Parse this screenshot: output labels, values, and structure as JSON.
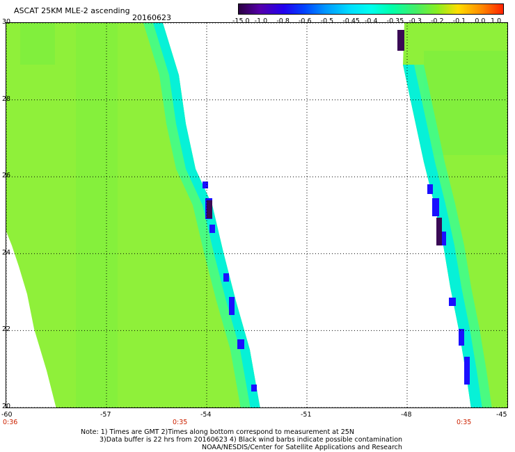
{
  "header": {
    "title": "ASCAT 25KM MLE-2 ascending",
    "date": "20160623"
  },
  "colorbar": {
    "ticks": [
      "-15.0",
      "-1.0",
      "-0.8",
      "-0.6",
      "-0.5",
      "-0.45",
      "-0.4",
      "-0.35",
      "-0.3",
      "-0.2",
      "-0.1",
      "0.0",
      "1.0"
    ],
    "colors": [
      "#2a0040",
      "#5500aa",
      "#2200ee",
      "#0044ff",
      "#0099ff",
      "#00ddff",
      "#00ffee",
      "#00ffaa",
      "#44ee66",
      "#88ee22",
      "#ffdd00",
      "#ff8800",
      "#ff2200"
    ]
  },
  "map": {
    "lat_range": [
      20,
      30
    ],
    "lon_range": [
      -60,
      -45
    ],
    "lat_ticks": [
      "30",
      "28",
      "26",
      "24",
      "22",
      "20"
    ],
    "lon_ticks": [
      "-60",
      "-57",
      "-54",
      "-51",
      "-48",
      "-45"
    ],
    "pass_times": [
      "0:36",
      "0:35",
      "0:35"
    ],
    "colors": {
      "field": "#8ff03a",
      "field_alt": "#66ee44",
      "edge": "#00f0e0",
      "edge_alt": "#33ff99",
      "contam": "#1a10ff",
      "contam_dark": "#3a0a55"
    }
  },
  "notes": {
    "line1": "Note: 1) Times are GMT 2)Times along bottom correspond to measurement at 25N",
    "line2": "3)Data buffer is 22 hrs from 20160623 4) Black wind barbs indicate possible contamination",
    "line3": "NOAA/NESDIS/Center for Satellite Applications and Research"
  }
}
